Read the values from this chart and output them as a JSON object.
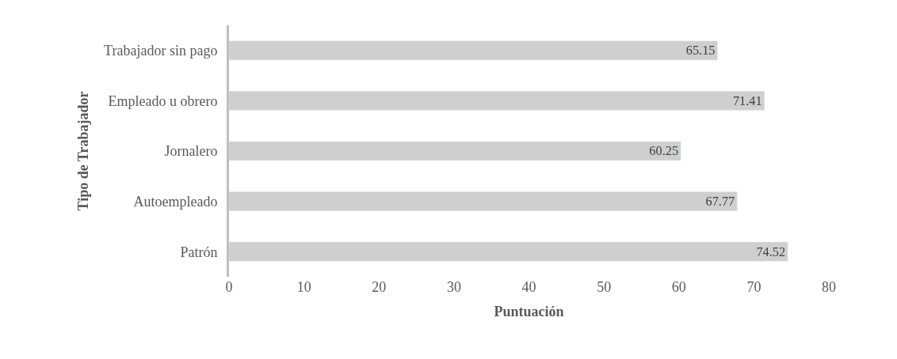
{
  "chart_data": {
    "type": "bar",
    "orientation": "horizontal",
    "xlabel": "Puntuación",
    "ylabel": "Tipo de Trabajador",
    "categories": [
      "Trabajador sin pago",
      "Empleado u obrero",
      "Jornalero",
      "Autoempleado",
      "Patrón"
    ],
    "values": [
      65.15,
      71.41,
      60.25,
      67.77,
      74.52
    ],
    "color": "#cfcfcf",
    "xlim": [
      0,
      80
    ],
    "xticks": [
      0,
      10,
      20,
      30,
      40,
      50,
      60,
      70,
      80
    ],
    "legend": false,
    "data_labels": true
  }
}
